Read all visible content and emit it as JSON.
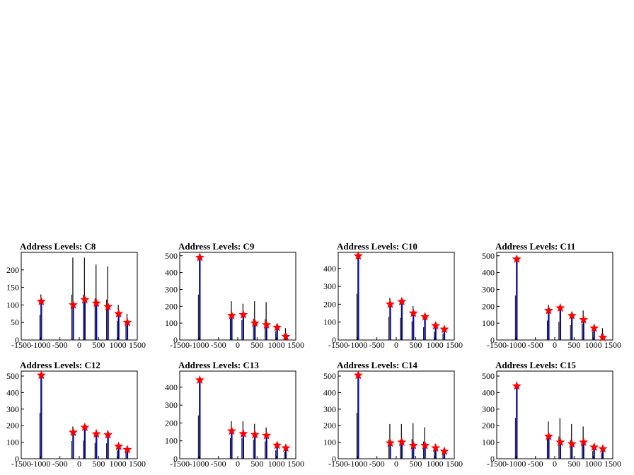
{
  "colors": {
    "black_series": "#000000",
    "blue_series": "#0000ff",
    "marker": "#ff0000",
    "background": "#ffffff",
    "frame": "#000000"
  },
  "marker_shape": "star",
  "chart_data": [
    {
      "type": "bar",
      "title": "Address Levels: C8",
      "xlim": [
        -1500,
        1500
      ],
      "ylim": [
        0,
        250
      ],
      "xticks": [
        -1500,
        -1000,
        -500,
        0,
        500,
        1000,
        1500
      ],
      "xtick_labels": [
        "-1500",
        "-1000",
        "-500",
        "0",
        "500",
        "1000",
        "1500"
      ],
      "yticks": [
        0,
        50,
        100,
        150,
        200
      ],
      "ytick_labels": [
        "0",
        "50",
        "100",
        "150",
        "200"
      ],
      "peaks_x": [
        -1000,
        -175,
        125,
        425,
        725,
        1000,
        1225
      ],
      "black_values": [
        130,
        235,
        235,
        215,
        210,
        100,
        75
      ],
      "blue_values": [
        110,
        100,
        115,
        105,
        95,
        75,
        50
      ],
      "markers": [
        110,
        100,
        115,
        105,
        95,
        75,
        50
      ]
    },
    {
      "type": "bar",
      "title": "Address Levels: C9",
      "xlim": [
        -1500,
        1500
      ],
      "ylim": [
        0,
        520
      ],
      "xticks": [
        -1500,
        -1000,
        -500,
        0,
        500,
        1000,
        1500
      ],
      "xtick_labels": [
        "-1500",
        "-1000",
        "-500",
        "0",
        "500",
        "1000",
        "1500"
      ],
      "yticks": [
        0,
        100,
        200,
        300,
        400,
        500
      ],
      "ytick_labels": [
        "0",
        "100",
        "200",
        "300",
        "400",
        "500"
      ],
      "peaks_x": [
        -1000,
        -175,
        125,
        425,
        725,
        1000,
        1225
      ],
      "black_values": [
        490,
        230,
        215,
        230,
        225,
        95,
        70
      ],
      "blue_values": [
        490,
        145,
        150,
        100,
        90,
        75,
        20
      ],
      "markers": [
        490,
        145,
        150,
        100,
        90,
        75,
        20
      ]
    },
    {
      "type": "bar",
      "title": "Address Levels: C10",
      "xlim": [
        -1500,
        1500
      ],
      "ylim": [
        0,
        490
      ],
      "xticks": [
        -1500,
        -1000,
        -500,
        0,
        500,
        1000,
        1500
      ],
      "xtick_labels": [
        "-1500",
        "-1000",
        "-500",
        "0",
        "500",
        "1000",
        "1500"
      ],
      "yticks": [
        0,
        100,
        200,
        300,
        400
      ],
      "ytick_labels": [
        "0",
        "100",
        "200",
        "300",
        "400"
      ],
      "peaks_x": [
        -1000,
        -175,
        125,
        425,
        725,
        1000,
        1225
      ],
      "black_values": [
        470,
        235,
        225,
        190,
        130,
        80,
        65
      ],
      "blue_values": [
        470,
        200,
        215,
        150,
        130,
        80,
        60
      ],
      "markers": [
        470,
        200,
        215,
        150,
        130,
        80,
        60
      ]
    },
    {
      "type": "bar",
      "title": "Address Levels: C11",
      "xlim": [
        -1500,
        1500
      ],
      "ylim": [
        0,
        520
      ],
      "xticks": [
        -1500,
        -1000,
        -500,
        0,
        500,
        1000,
        1500
      ],
      "xtick_labels": [
        "-1500",
        "-1000",
        "-500",
        "0",
        "500",
        "1000",
        "1500"
      ],
      "yticks": [
        0,
        100,
        200,
        300,
        400,
        500
      ],
      "ytick_labels": [
        "0",
        "100",
        "200",
        "300",
        "400",
        "500"
      ],
      "peaks_x": [
        -1000,
        -175,
        125,
        425,
        725,
        1000,
        1225
      ],
      "black_values": [
        480,
        210,
        195,
        160,
        175,
        90,
        70
      ],
      "blue_values": [
        480,
        175,
        190,
        145,
        120,
        70,
        15
      ],
      "markers": [
        480,
        175,
        190,
        145,
        120,
        70,
        15
      ]
    },
    {
      "type": "bar",
      "title": "Address Levels: C12",
      "xlim": [
        -1500,
        1500
      ],
      "ylim": [
        0,
        530
      ],
      "xticks": [
        -1500,
        -1000,
        -500,
        0,
        500,
        1000,
        1500
      ],
      "xtick_labels": [
        "-1500",
        "-1000",
        "-500",
        "0",
        "500",
        "1000",
        "1500"
      ],
      "yticks": [
        0,
        100,
        200,
        300,
        400,
        500
      ],
      "ytick_labels": [
        "0",
        "100",
        "200",
        "300",
        "400",
        "500"
      ],
      "peaks_x": [
        -1000,
        -175,
        125,
        425,
        725,
        1000,
        1225
      ],
      "black_values": [
        505,
        195,
        200,
        175,
        170,
        90,
        70
      ],
      "blue_values": [
        505,
        160,
        190,
        150,
        145,
        75,
        55
      ],
      "markers": [
        505,
        160,
        190,
        150,
        145,
        75,
        55
      ]
    },
    {
      "type": "bar",
      "title": "Address Levels: C13",
      "xlim": [
        -1500,
        1500
      ],
      "ylim": [
        0,
        490
      ],
      "xticks": [
        -1500,
        -1000,
        -500,
        0,
        500,
        1000,
        1500
      ],
      "xtick_labels": [
        "-1500",
        "-1000",
        "-500",
        "0",
        "500",
        "1000",
        "1500"
      ],
      "yticks": [
        0,
        100,
        200,
        300,
        400
      ],
      "ytick_labels": [
        "0",
        "100",
        "200",
        "300",
        "400"
      ],
      "peaks_x": [
        -1000,
        -175,
        125,
        425,
        725,
        1000,
        1225
      ],
      "black_values": [
        440,
        210,
        210,
        195,
        175,
        85,
        70
      ],
      "blue_values": [
        440,
        155,
        140,
        135,
        130,
        75,
        60
      ],
      "markers": [
        440,
        155,
        140,
        135,
        130,
        75,
        60
      ]
    },
    {
      "type": "bar",
      "title": "Address Levels: C14",
      "xlim": [
        -1500,
        1500
      ],
      "ylim": [
        0,
        530
      ],
      "xticks": [
        -1500,
        -1000,
        -500,
        0,
        500,
        1000,
        1500
      ],
      "xtick_labels": [
        "-1500",
        "-1000",
        "-500",
        "0",
        "500",
        "1000",
        "1500"
      ],
      "yticks": [
        0,
        100,
        200,
        300,
        400,
        500
      ],
      "ytick_labels": [
        "0",
        "100",
        "200",
        "300",
        "400",
        "500"
      ],
      "peaks_x": [
        -1000,
        -175,
        125,
        425,
        725,
        1000,
        1225
      ],
      "black_values": [
        505,
        210,
        210,
        215,
        190,
        90,
        60
      ],
      "blue_values": [
        505,
        95,
        100,
        80,
        80,
        65,
        45
      ],
      "markers": [
        505,
        95,
        100,
        80,
        80,
        65,
        45
      ]
    },
    {
      "type": "bar",
      "title": "Address Levels: C15",
      "xlim": [
        -1500,
        1500
      ],
      "ylim": [
        0,
        530
      ],
      "xticks": [
        -1500,
        -1000,
        -500,
        0,
        500,
        1000,
        1500
      ],
      "xtick_labels": [
        "-1500",
        "-1000",
        "-500",
        "0",
        "500",
        "1000",
        "1500"
      ],
      "yticks": [
        0,
        100,
        200,
        300,
        400,
        500
      ],
      "ytick_labels": [
        "0",
        "100",
        "200",
        "300",
        "400",
        "500"
      ],
      "peaks_x": [
        -1000,
        -175,
        125,
        425,
        725,
        1000,
        1225
      ],
      "black_values": [
        450,
        225,
        245,
        210,
        195,
        85,
        65
      ],
      "blue_values": [
        440,
        135,
        100,
        90,
        100,
        70,
        60
      ],
      "markers": [
        440,
        135,
        100,
        90,
        100,
        70,
        60
      ]
    }
  ]
}
